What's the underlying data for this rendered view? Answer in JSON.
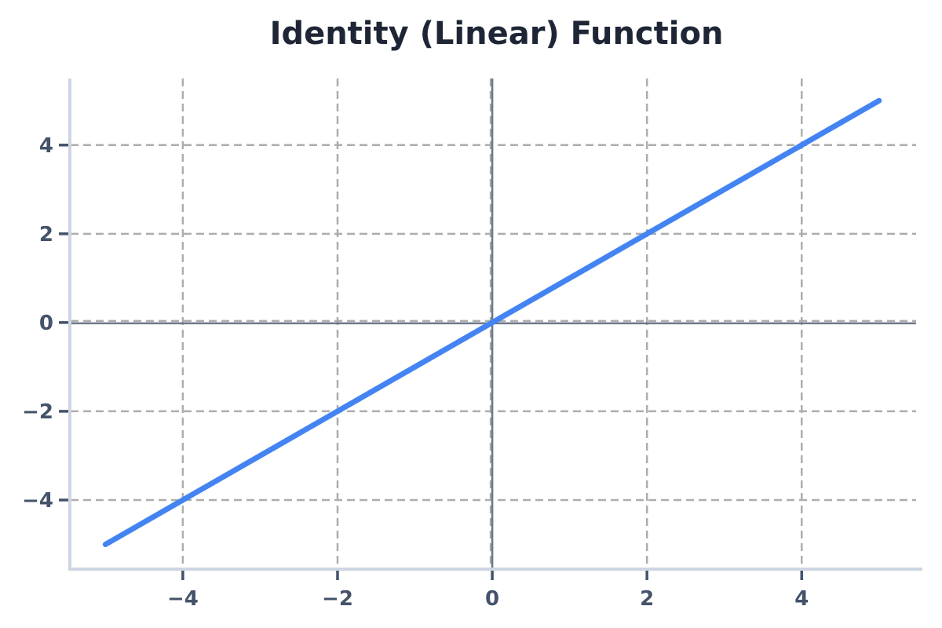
{
  "page": {
    "background": "#ffffff"
  },
  "chart_data": {
    "type": "line",
    "title": "Identity (Linear) Function",
    "subtitle": "",
    "xlabel": "",
    "ylabel": "",
    "function": "y = x",
    "xlim": [
      -5.45,
      5.56
    ],
    "ylim": [
      -5.54,
      5.5
    ],
    "xticks": [
      -4,
      -2,
      0,
      2,
      4
    ],
    "xtick_labels": [
      "−4",
      "−2",
      "0",
      "2",
      "4"
    ],
    "yticks": [
      -4,
      -2,
      0,
      2,
      4
    ],
    "ytick_labels": [
      "−4",
      "−2",
      "0",
      "2",
      "4"
    ],
    "grid": "dashed",
    "grid_every": 2,
    "zero_lines": "solid",
    "legend": "none",
    "series": [
      {
        "name": "identity-line",
        "x": [
          -5,
          5
        ],
        "y": [
          -5,
          5
        ],
        "color": "#4484f2",
        "width": 7
      }
    ],
    "colors": {
      "title": "#1e2636",
      "tick_label": "#44526a",
      "tick_mark": "#44526a",
      "grid": "#adadad",
      "zero_line": "#6d7888",
      "spine": "#cdd6e2",
      "line": "#4484f2",
      "background": "#ffffff"
    }
  }
}
